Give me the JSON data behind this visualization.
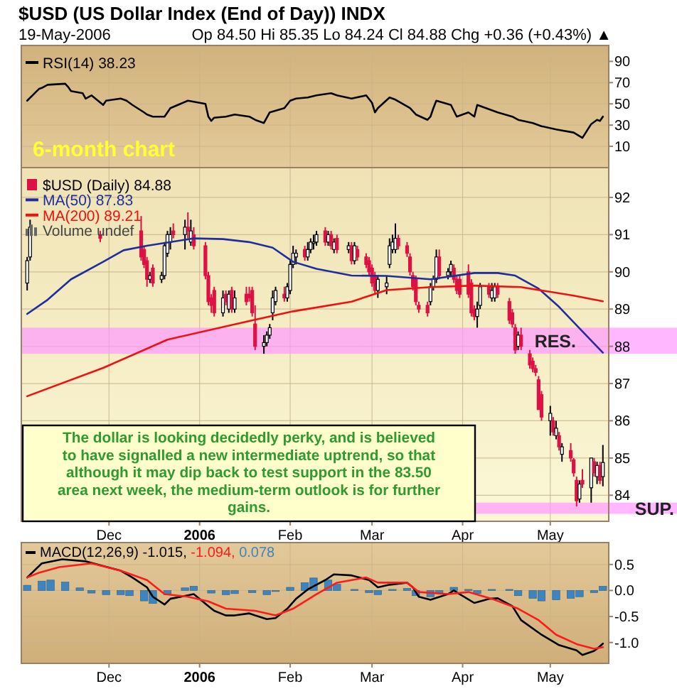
{
  "chart_data": [
    {
      "type": "line",
      "title": "$USD (US Dollar Index (End of Day)) INDX",
      "subtitle": "19-May-2006",
      "annotations": [
        "Op 84.50 Hi 85.35 Lo 84.24 Cl 84.88 Chg +0.36 (+0.43%) ▲",
        "6-month chart"
      ],
      "series": [
        {
          "name": "RSI(14) 38.23",
          "color": "#000000",
          "x": [
            "2005-11-03",
            "2005-11-07",
            "2005-11-08",
            "2005-11-10",
            "2005-11-16",
            "2005-11-17",
            "2005-11-18",
            "2005-11-22",
            "2005-11-23",
            "2005-11-25",
            "2005-11-29",
            "2005-11-30",
            "2005-12-05",
            "2005-12-07",
            "2005-12-09",
            "2005-12-13",
            "2005-12-14",
            "2005-12-16",
            "2005-12-20",
            "2005-12-22",
            "2005-12-28",
            "2005-12-30",
            "2006-01-03",
            "2006-01-04",
            "2006-01-05",
            "2006-01-06",
            "2006-01-10",
            "2006-01-13",
            "2006-01-18",
            "2006-01-20",
            "2006-01-23",
            "2006-01-25",
            "2006-01-30",
            "2006-02-01",
            "2006-02-03",
            "2006-02-07",
            "2006-02-10",
            "2006-02-15",
            "2006-02-17",
            "2006-02-22",
            "2006-02-27",
            "2006-03-01",
            "2006-03-02",
            "2006-03-03",
            "2006-03-07",
            "2006-03-09",
            "2006-03-14",
            "2006-03-16",
            "2006-03-20",
            "2006-03-21",
            "2006-03-22",
            "2006-03-23",
            "2006-03-28",
            "2006-03-30",
            "2006-04-03",
            "2006-04-05",
            "2006-04-06",
            "2006-04-11",
            "2006-04-13",
            "2006-04-18",
            "2006-04-20",
            "2006-04-25",
            "2006-04-28",
            "2006-05-03",
            "2006-05-09",
            "2006-05-12",
            "2006-05-15",
            "2006-05-17",
            "2006-05-18",
            "2006-05-19"
          ],
          "values": [
            53,
            64,
            65,
            68,
            69,
            66,
            62,
            60,
            55,
            58,
            49,
            53,
            55,
            53,
            49,
            42,
            40,
            38,
            38,
            46,
            53,
            52,
            50,
            38,
            34,
            37,
            38,
            40,
            38,
            35,
            32,
            42,
            46,
            53,
            55,
            56,
            58,
            60,
            58,
            55,
            58,
            51,
            42,
            46,
            56,
            54,
            46,
            40,
            35,
            38,
            46,
            53,
            49,
            38,
            42,
            38,
            49,
            44,
            42,
            38,
            35,
            32,
            29,
            26,
            23,
            18,
            31,
            35,
            34,
            38
          ]
        }
      ],
      "xlim": [
        "2005-11-01",
        "2006-05-21"
      ],
      "xticks": [
        {
          "value": "2005-12-01",
          "label": null
        },
        {
          "value": "2006-01-01",
          "label": null
        },
        {
          "value": "2006-02-01",
          "label": null
        },
        {
          "value": "2006-03-01",
          "label": null
        },
        {
          "value": "2006-04-01",
          "label": null
        },
        {
          "value": "2006-05-01",
          "label": null
        }
      ],
      "ylim": [
        -10,
        105
      ],
      "yticks": [
        10,
        30,
        50,
        70,
        90
      ],
      "tick_labels": "y",
      "grid": true,
      "legend": "top left"
    },
    {
      "type": "candlestick",
      "annotations": [
        "Volume undef",
        "The dollar is looking decidedly perky, and is believed to have signalled a new intermediate uptrend, so that although it may dip back to test support in the 83.50 area next week, the medium-term outlook is for further gains."
      ],
      "x": [
        "2005-11-03",
        "2005-11-04",
        "2005-11-28",
        "2005-12-12",
        "2005-12-13",
        "2005-12-14",
        "2005-12-15",
        "2005-12-16",
        "2005-12-19",
        "2005-12-20",
        "2005-12-21",
        "2005-12-22",
        "2005-12-23",
        "2005-12-27",
        "2005-12-28",
        "2005-12-29",
        "2005-12-30",
        "2006-01-03",
        "2006-01-04",
        "2006-01-05",
        "2006-01-06",
        "2006-01-09",
        "2006-01-10",
        "2006-01-11",
        "2006-01-12",
        "2006-01-13",
        "2006-01-17",
        "2006-01-18",
        "2006-01-19",
        "2006-01-20",
        "2006-01-23",
        "2006-01-24",
        "2006-01-25",
        "2006-01-26",
        "2006-01-27",
        "2006-01-30",
        "2006-01-31",
        "2006-02-01",
        "2006-02-02",
        "2006-02-03",
        "2006-02-06",
        "2006-02-07",
        "2006-02-08",
        "2006-02-09",
        "2006-02-10",
        "2006-02-13",
        "2006-02-14",
        "2006-02-15",
        "2006-02-16",
        "2006-02-17",
        "2006-02-21",
        "2006-02-22",
        "2006-02-23",
        "2006-02-24",
        "2006-02-27",
        "2006-02-28",
        "2006-03-01",
        "2006-03-02",
        "2006-03-03",
        "2006-03-06",
        "2006-03-07",
        "2006-03-08",
        "2006-03-09",
        "2006-03-10",
        "2006-03-13",
        "2006-03-14",
        "2006-03-15",
        "2006-03-16",
        "2006-03-17",
        "2006-03-20",
        "2006-03-21",
        "2006-03-22",
        "2006-03-23",
        "2006-03-24",
        "2006-03-27",
        "2006-03-28",
        "2006-03-29",
        "2006-03-30",
        "2006-03-31",
        "2006-04-03",
        "2006-04-04",
        "2006-04-05",
        "2006-04-06",
        "2006-04-07",
        "2006-04-10",
        "2006-04-11",
        "2006-04-12",
        "2006-04-13",
        "2006-04-17",
        "2006-04-18",
        "2006-04-19",
        "2006-04-20",
        "2006-04-21",
        "2006-04-24",
        "2006-04-25",
        "2006-04-26",
        "2006-04-27",
        "2006-04-28",
        "2006-05-01",
        "2006-05-02",
        "2006-05-03",
        "2006-05-04",
        "2006-05-05",
        "2006-05-08",
        "2006-05-09",
        "2006-05-10",
        "2006-05-11",
        "2006-05-12",
        "2006-05-15",
        "2006-05-16",
        "2006-05-17",
        "2006-05-18",
        "2006-05-19"
      ],
      "series": [
        {
          "name": "$USD (Daily) 84.88",
          "color": "#dd1144",
          "colors": [
            "#ffffff",
            "#ffffff",
            "#dd1144",
            "#dd1144",
            "#dd1144",
            "#dd1144",
            "#ffffff",
            "#dd1144",
            "#ffffff",
            "#ffffff",
            "#ffffff",
            "#ffffff",
            "#dd1144",
            "#ffffff",
            "#dd1144",
            "#ffffff",
            "#dd1144",
            "#dd1144",
            "#dd1144",
            "#dd1144",
            "#dd1144",
            "#ffffff",
            "#dd1144",
            "#ffffff",
            "#dd1144",
            "#ffffff",
            "#dd1144",
            "#dd1144",
            "#dd1144",
            "#dd1144",
            "#ffffff",
            "#ffffff",
            "#ffffff",
            "#ffffff",
            "#ffffff",
            "#dd1144",
            "#ffffff",
            "#ffffff",
            "#ffffff",
            "#ffffff",
            "#dd1144",
            "#ffffff",
            "#ffffff",
            "#ffffff",
            "#ffffff",
            "#dd1144",
            "#ffffff",
            "#dd1144",
            "#ffffff",
            "#dd1144",
            "#ffffff",
            "#dd1144",
            "#ffffff",
            "#dd1144",
            "#dd1144",
            "#dd1144",
            "#dd1144",
            "#dd1144",
            "#ffffff",
            "#ffffff",
            "#ffffff",
            "#ffffff",
            "#ffffff",
            "#dd1144",
            "#dd1144",
            "#dd1144",
            "#dd1144",
            "#dd1144",
            "#dd1144",
            "#dd1144",
            "#ffffff",
            "#ffffff",
            "#ffffff",
            "#dd1144",
            "#ffffff",
            "#ffffff",
            "#dd1144",
            "#dd1144",
            "#dd1144",
            "#dd1144",
            "#dd1144",
            "#dd1144",
            "#ffffff",
            "#ffffff",
            "#dd1144",
            "#ffffff",
            "#ffffff",
            "#dd1144",
            "#dd1144",
            "#dd1144",
            "#dd1144",
            "#ffffff",
            "#dd1144",
            "#dd1144",
            "#dd1144",
            "#dd1144",
            "#dd1144",
            "#dd1144",
            "#ffffff",
            "#dd1144",
            "#ffffff",
            "#dd1144",
            "#ffffff",
            "#dd1144",
            "#dd1144",
            "#dd1144",
            "#ffffff",
            "#dd1144",
            "#ffffff",
            "#dd1144",
            "#ffffff",
            "#dd1144",
            "#ffffff"
          ],
          "ohlc": [
            [
              89.7,
              90.4,
              89.5,
              90.3
            ],
            [
              90.4,
              91.4,
              90.3,
              91.2
            ],
            [
              91.0,
              91.1,
              90.8,
              90.9
            ],
            [
              91.1,
              91.5,
              90.3,
              90.4
            ],
            [
              90.6,
              90.7,
              90.1,
              90.2
            ],
            [
              90.3,
              90.4,
              89.6,
              89.8
            ],
            [
              89.8,
              90.0,
              89.7,
              89.9
            ],
            [
              90.1,
              90.2,
              89.6,
              89.7
            ],
            [
              89.8,
              90.0,
              89.7,
              89.9
            ],
            [
              89.9,
              90.8,
              89.8,
              90.7
            ],
            [
              90.5,
              91.1,
              90.4,
              91.0
            ],
            [
              90.8,
              91.2,
              90.6,
              91.0
            ],
            [
              91.1,
              91.3,
              90.9,
              91.0
            ],
            [
              91.0,
              91.4,
              90.6,
              91.2
            ],
            [
              91.2,
              91.6,
              90.9,
              91.1
            ],
            [
              90.8,
              91.4,
              90.7,
              91.1
            ],
            [
              91.0,
              91.2,
              90.6,
              90.7
            ],
            [
              90.7,
              90.8,
              89.8,
              89.9
            ],
            [
              89.9,
              90.0,
              89.1,
              89.2
            ],
            [
              89.3,
              89.4,
              88.9,
              89.1
            ],
            [
              89.5,
              89.6,
              88.8,
              88.9
            ],
            [
              88.9,
              89.5,
              88.8,
              89.3
            ],
            [
              89.4,
              89.5,
              89.1,
              89.2
            ],
            [
              89.0,
              89.5,
              88.9,
              89.4
            ],
            [
              89.5,
              89.6,
              88.9,
              89.0
            ],
            [
              89.0,
              89.5,
              88.9,
              89.3
            ],
            [
              89.4,
              89.6,
              89.1,
              89.2
            ],
            [
              89.4,
              89.6,
              89.2,
              89.3
            ],
            [
              89.5,
              89.6,
              88.8,
              88.9
            ],
            [
              88.6,
              89.1,
              87.9,
              88.0
            ],
            [
              88.0,
              88.3,
              87.8,
              88.1
            ],
            [
              88.1,
              88.4,
              88.0,
              88.3
            ],
            [
              88.3,
              88.6,
              88.2,
              88.5
            ],
            [
              88.9,
              89.5,
              88.7,
              89.3
            ],
            [
              89.2,
              89.6,
              89.1,
              89.5
            ],
            [
              89.4,
              89.6,
              89.2,
              89.3
            ],
            [
              89.3,
              89.7,
              89.2,
              89.6
            ],
            [
              89.5,
              90.3,
              89.4,
              90.2
            ],
            [
              90.2,
              90.7,
              90.1,
              90.5
            ],
            [
              90.4,
              90.6,
              90.2,
              90.5
            ],
            [
              90.6,
              90.7,
              90.3,
              90.4
            ],
            [
              90.4,
              90.8,
              90.3,
              90.6
            ],
            [
              90.6,
              90.9,
              90.5,
              90.8
            ],
            [
              90.8,
              91.0,
              90.6,
              90.8
            ],
            [
              90.8,
              91.1,
              90.7,
              91.0
            ],
            [
              91.1,
              91.2,
              90.7,
              90.8
            ],
            [
              90.8,
              91.1,
              90.7,
              91.0
            ],
            [
              91.0,
              91.1,
              90.6,
              90.7
            ],
            [
              90.6,
              90.9,
              90.5,
              90.8
            ],
            [
              90.9,
              91.0,
              90.5,
              90.6
            ],
            [
              90.6,
              90.8,
              90.5,
              90.7
            ],
            [
              90.7,
              90.8,
              90.2,
              90.3
            ],
            [
              90.3,
              90.8,
              90.2,
              90.7
            ],
            [
              90.6,
              90.7,
              90.3,
              90.4
            ],
            [
              90.4,
              90.5,
              90.1,
              90.2
            ],
            [
              90.3,
              90.4,
              89.9,
              90.0
            ],
            [
              90.1,
              90.2,
              89.6,
              89.7
            ],
            [
              89.9,
              90.0,
              89.4,
              89.5
            ],
            [
              89.5,
              89.9,
              89.3,
              89.8
            ],
            [
              89.6,
              89.9,
              89.4,
              89.7
            ],
            [
              90.2,
              90.9,
              90.1,
              90.7
            ],
            [
              90.6,
              91.0,
              90.5,
              90.8
            ],
            [
              90.6,
              91.3,
              90.5,
              90.9
            ],
            [
              90.9,
              91.0,
              90.6,
              90.7
            ],
            [
              90.7,
              90.8,
              90.4,
              90.5
            ],
            [
              90.4,
              90.5,
              89.9,
              90.0
            ],
            [
              89.9,
              90.0,
              89.5,
              89.6
            ],
            [
              89.8,
              89.9,
              89.1,
              89.2
            ],
            [
              89.1,
              89.2,
              88.9,
              89.0
            ],
            [
              89.1,
              89.2,
              88.8,
              88.9
            ],
            [
              89.2,
              89.7,
              89.1,
              89.6
            ],
            [
              89.6,
              89.9,
              89.5,
              89.8
            ],
            [
              89.8,
              90.6,
              89.7,
              90.4
            ],
            [
              90.4,
              90.6,
              89.8,
              89.9
            ],
            [
              89.9,
              90.1,
              89.8,
              90.0
            ],
            [
              90.0,
              90.3,
              89.9,
              90.2
            ],
            [
              90.1,
              90.2,
              89.7,
              89.8
            ],
            [
              89.8,
              89.9,
              89.4,
              89.5
            ],
            [
              89.8,
              89.9,
              89.3,
              89.4
            ],
            [
              90.0,
              90.2,
              89.3,
              89.4
            ],
            [
              89.7,
              89.8,
              88.8,
              88.9
            ],
            [
              89.0,
              89.1,
              88.7,
              88.8
            ],
            [
              88.8,
              89.2,
              88.5,
              89.0
            ],
            [
              89.1,
              89.7,
              89.0,
              89.6
            ],
            [
              89.6,
              89.7,
              89.3,
              89.4
            ],
            [
              89.3,
              89.7,
              89.2,
              89.5
            ],
            [
              89.3,
              89.7,
              89.2,
              89.6
            ],
            [
              89.6,
              89.7,
              89.3,
              89.4
            ],
            [
              89.2,
              89.3,
              88.6,
              88.7
            ],
            [
              88.9,
              89.0,
              88.5,
              88.6
            ],
            [
              88.5,
              88.6,
              87.8,
              87.9
            ],
            [
              88.0,
              88.4,
              87.9,
              88.3
            ],
            [
              88.3,
              88.5,
              87.9,
              88.0
            ],
            [
              87.8,
              87.9,
              87.4,
              87.5
            ],
            [
              87.6,
              87.7,
              87.3,
              87.4
            ],
            [
              87.4,
              87.5,
              87.2,
              87.3
            ],
            [
              87.1,
              87.2,
              86.3,
              86.3
            ],
            [
              86.7,
              86.8,
              86.0,
              86.1
            ],
            [
              86.0,
              86.4,
              85.6,
              86.2
            ],
            [
              86.0,
              86.1,
              85.6,
              85.7
            ],
            [
              85.6,
              86.0,
              85.5,
              85.8
            ],
            [
              85.6,
              85.7,
              85.2,
              85.3
            ],
            [
              85.1,
              85.4,
              84.9,
              85.3
            ],
            [
              85.2,
              85.4,
              84.9,
              85.0
            ],
            [
              84.95,
              85.0,
              84.5,
              84.6
            ],
            [
              84.4,
              84.5,
              83.7,
              83.85
            ],
            [
              83.9,
              84.4,
              83.8,
              84.3
            ],
            [
              84.4,
              84.7,
              84.2,
              84.3
            ],
            [
              84.2,
              85.0,
              83.8,
              85.0
            ],
            [
              84.9,
              85.0,
              84.5,
              84.6
            ],
            [
              84.5,
              84.9,
              84.3,
              84.8
            ],
            [
              84.8,
              84.9,
              84.3,
              84.4
            ],
            [
              84.5,
              85.35,
              84.24,
              84.88
            ]
          ]
        },
        {
          "type": "line",
          "name": "MA(50) 87.83",
          "color": "#1f2d9e",
          "x": [
            "2005-11-03",
            "2005-11-10",
            "2005-11-18",
            "2005-11-29",
            "2005-12-06",
            "2005-12-14",
            "2005-12-30",
            "2006-01-09",
            "2006-01-18",
            "2006-01-26",
            "2006-02-02",
            "2006-02-10",
            "2006-02-22",
            "2006-03-06",
            "2006-03-21",
            "2006-04-05",
            "2006-04-13",
            "2006-04-19",
            "2006-04-27",
            "2006-05-04",
            "2006-05-12",
            "2006-05-19"
          ],
          "values": [
            88.87,
            89.25,
            89.8,
            90.27,
            90.58,
            90.7,
            90.9,
            90.88,
            90.8,
            90.65,
            90.27,
            90.08,
            89.9,
            89.89,
            89.8,
            89.97,
            89.97,
            89.9,
            89.55,
            89.06,
            88.4,
            87.83
          ]
        },
        {
          "type": "line",
          "name": "MA(200) 89.21",
          "color": "#ee1111",
          "x": [
            "2005-11-03",
            "2005-11-29",
            "2005-12-21",
            "2006-01-18",
            "2006-02-02",
            "2006-02-22",
            "2006-03-06",
            "2006-03-21",
            "2006-04-05",
            "2006-04-21",
            "2006-05-09",
            "2006-05-19"
          ],
          "values": [
            86.66,
            87.42,
            88.18,
            88.68,
            88.94,
            89.2,
            89.51,
            89.59,
            89.63,
            89.59,
            89.36,
            89.21
          ]
        }
      ],
      "xlim": [
        "2005-11-01",
        "2006-05-21"
      ],
      "xticks": [
        {
          "value": "2005-12-01",
          "label": "Dec"
        },
        {
          "value": "2006-01-01",
          "label": "2006"
        },
        {
          "value": "2006-02-01",
          "label": "Feb"
        },
        {
          "value": "2006-03-01",
          "label": "Mar"
        },
        {
          "value": "2006-04-01",
          "label": "Apr"
        },
        {
          "value": "2006-05-01",
          "label": "May"
        }
      ],
      "ylim": [
        83.3,
        92.8
      ],
      "yticks": [
        84,
        85,
        86,
        87,
        88,
        89,
        90,
        91,
        92
      ],
      "grid": true,
      "legend": "top left",
      "bands": [
        {
          "axis": "y",
          "from": 87.8,
          "to": 88.5,
          "label": "RES.",
          "color": "#ff99ff"
        },
        {
          "axis": "y",
          "from": 83.5,
          "to": 83.8,
          "label": "SUP.",
          "color": "#ff99ff"
        }
      ]
    },
    {
      "type": "line",
      "series": [
        {
          "name": "MACD(12,26,9) -1.015,",
          "color": "#000000",
          "x": [
            "2005-11-03",
            "2005-11-08",
            "2005-11-15",
            "2005-11-23",
            "2005-11-29",
            "2005-12-05",
            "2005-12-09",
            "2005-12-14",
            "2005-12-16",
            "2005-12-20",
            "2005-12-22",
            "2005-12-30",
            "2006-01-04",
            "2006-01-06",
            "2006-01-10",
            "2006-01-13",
            "2006-01-18",
            "2006-01-20",
            "2006-01-24",
            "2006-01-27",
            "2006-01-31",
            "2006-02-03",
            "2006-02-07",
            "2006-02-13",
            "2006-02-16",
            "2006-02-22",
            "2006-02-28",
            "2006-03-03",
            "2006-03-07",
            "2006-03-13",
            "2006-03-15",
            "2006-03-17",
            "2006-03-21",
            "2006-03-27",
            "2006-03-29",
            "2006-03-31",
            "2006-04-05",
            "2006-04-10",
            "2006-04-13",
            "2006-04-18",
            "2006-04-21",
            "2006-04-28",
            "2006-05-04",
            "2006-05-10",
            "2006-05-12",
            "2006-05-16",
            "2006-05-17",
            "2006-05-19"
          ],
          "values": [
            0.25,
            0.52,
            0.6,
            0.56,
            0.47,
            0.38,
            0.25,
            0.06,
            -0.12,
            -0.27,
            -0.16,
            -0.07,
            -0.3,
            -0.39,
            -0.48,
            -0.48,
            -0.44,
            -0.48,
            -0.55,
            -0.53,
            -0.35,
            -0.16,
            0.02,
            0.2,
            0.31,
            0.29,
            0.2,
            0.06,
            0.11,
            0.15,
            0.06,
            -0.12,
            -0.18,
            -0.07,
            0,
            -0.07,
            -0.24,
            -0.16,
            -0.15,
            -0.3,
            -0.57,
            -0.85,
            -1.05,
            -1.15,
            -1.24,
            -1.16,
            -1.12,
            -1.02
          ]
        },
        {
          "name": "-1.094,",
          "color": "#ff1a1a",
          "x": [
            "2005-11-03",
            "2005-11-07",
            "2005-11-14",
            "2005-11-25",
            "2005-12-05",
            "2005-12-14",
            "2005-12-20",
            "2005-12-28",
            "2006-01-04",
            "2006-01-10",
            "2006-01-20",
            "2006-01-27",
            "2006-02-02",
            "2006-02-10",
            "2006-02-17",
            "2006-02-27",
            "2006-03-03",
            "2006-03-13",
            "2006-03-17",
            "2006-03-27",
            "2006-04-03",
            "2006-04-11",
            "2006-04-20",
            "2006-04-27",
            "2006-05-03",
            "2006-05-10",
            "2006-05-16",
            "2006-05-19"
          ],
          "values": [
            0.25,
            0.34,
            0.45,
            0.52,
            0.38,
            0.2,
            -0.07,
            -0.12,
            -0.21,
            -0.35,
            -0.39,
            -0.48,
            -0.35,
            -0.07,
            0.15,
            0.25,
            0.15,
            0.15,
            -0.03,
            -0.07,
            -0.03,
            -0.16,
            -0.35,
            -0.57,
            -0.85,
            -1.03,
            -1.12,
            -1.09
          ]
        },
        {
          "type": "bar",
          "name": "0.078",
          "color": "#3d85c0",
          "x": [
            "2005-11-03",
            "2005-11-08",
            "2005-11-11",
            "2005-11-16",
            "2005-11-21",
            "2005-11-25",
            "2005-11-30",
            "2005-12-05",
            "2005-12-08",
            "2005-12-13",
            "2005-12-16",
            "2005-12-21",
            "2005-12-27",
            "2005-12-30",
            "2006-01-05",
            "2006-01-10",
            "2006-01-13",
            "2006-01-19",
            "2006-01-24",
            "2006-01-27",
            "2006-02-01",
            "2006-02-06",
            "2006-02-09",
            "2006-02-14",
            "2006-02-17",
            "2006-02-23",
            "2006-02-28",
            "2006-03-03",
            "2006-03-08",
            "2006-03-13",
            "2006-03-16",
            "2006-03-21",
            "2006-03-24",
            "2006-03-29",
            "2006-04-03",
            "2006-04-06",
            "2006-04-11",
            "2006-04-17",
            "2006-04-20",
            "2006-04-25",
            "2006-04-28",
            "2006-05-03",
            "2006-05-08",
            "2006-05-11",
            "2006-05-16",
            "2006-05-19"
          ],
          "values": [
            0.1,
            0.18,
            0.2,
            0.16,
            0.05,
            -0.05,
            -0.08,
            -0.08,
            -0.1,
            -0.2,
            -0.25,
            -0.08,
            0.05,
            0.08,
            -0.05,
            -0.08,
            -0.06,
            -0.04,
            -0.08,
            -0.02,
            0.06,
            0.15,
            0.24,
            0.2,
            0.12,
            0.02,
            -0.04,
            -0.08,
            0.02,
            0.04,
            -0.1,
            -0.12,
            -0.05,
            0.06,
            0.02,
            -0.06,
            0.02,
            0.02,
            -0.1,
            -0.15,
            -0.2,
            -0.18,
            -0.15,
            -0.12,
            -0.04,
            0.08
          ]
        }
      ],
      "xlim": [
        "2005-11-01",
        "2006-05-21"
      ],
      "xticks": [
        {
          "value": "2005-12-01",
          "label": "Dec"
        },
        {
          "value": "2006-01-01",
          "label": "2006"
        },
        {
          "value": "2006-02-01",
          "label": "Feb"
        },
        {
          "value": "2006-03-01",
          "label": "Mar"
        },
        {
          "value": "2006-04-01",
          "label": "Apr"
        },
        {
          "value": "2006-05-01",
          "label": "May"
        }
      ],
      "ylim": [
        -1.4,
        0.92
      ],
      "yticks": [
        {
          "value": 0.5,
          "label": "0.5"
        },
        {
          "value": 0,
          "label": "0.0"
        },
        {
          "value": -0.5,
          "label": "-0.5"
        },
        {
          "value": -1,
          "label": "-1.0"
        }
      ],
      "grid": true,
      "legend": "top left"
    }
  ]
}
